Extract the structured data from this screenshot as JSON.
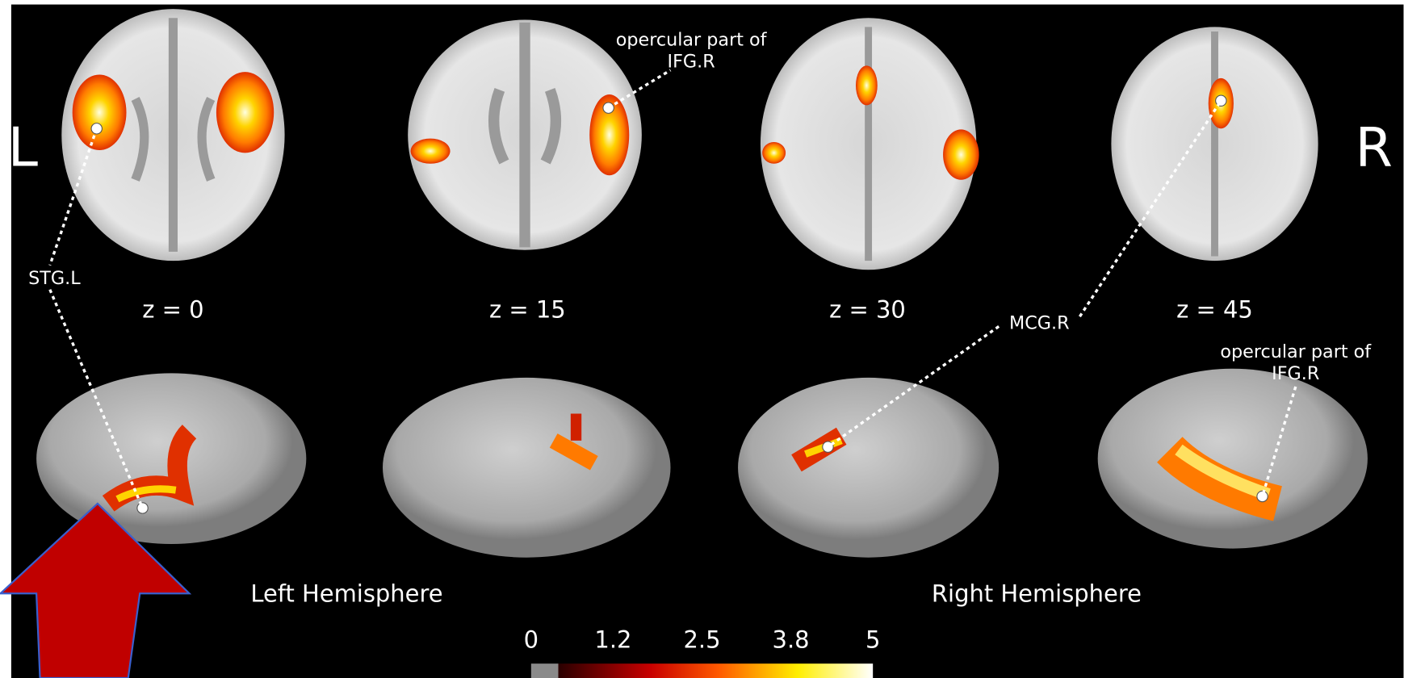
{
  "side_labels": {
    "left": "L",
    "right": "R"
  },
  "axial_slices": [
    {
      "label": "z = 0"
    },
    {
      "label": "z = 15"
    },
    {
      "label": "z = 30"
    },
    {
      "label": "z = 45"
    }
  ],
  "annotations": {
    "stg_left": "STG.L",
    "ifg_axial": [
      "opercular part of",
      "IFG.R"
    ],
    "mcg_right": "MCG.R",
    "ifg_surface": [
      "opercular part of",
      "IFG.R"
    ]
  },
  "hemispheres": {
    "left": "Left Hemisphere",
    "right": "Right Hemisphere"
  },
  "colorbar": {
    "range": [
      0,
      5
    ],
    "ticks": [
      0,
      1.2,
      2.5,
      3.8,
      5
    ]
  }
}
